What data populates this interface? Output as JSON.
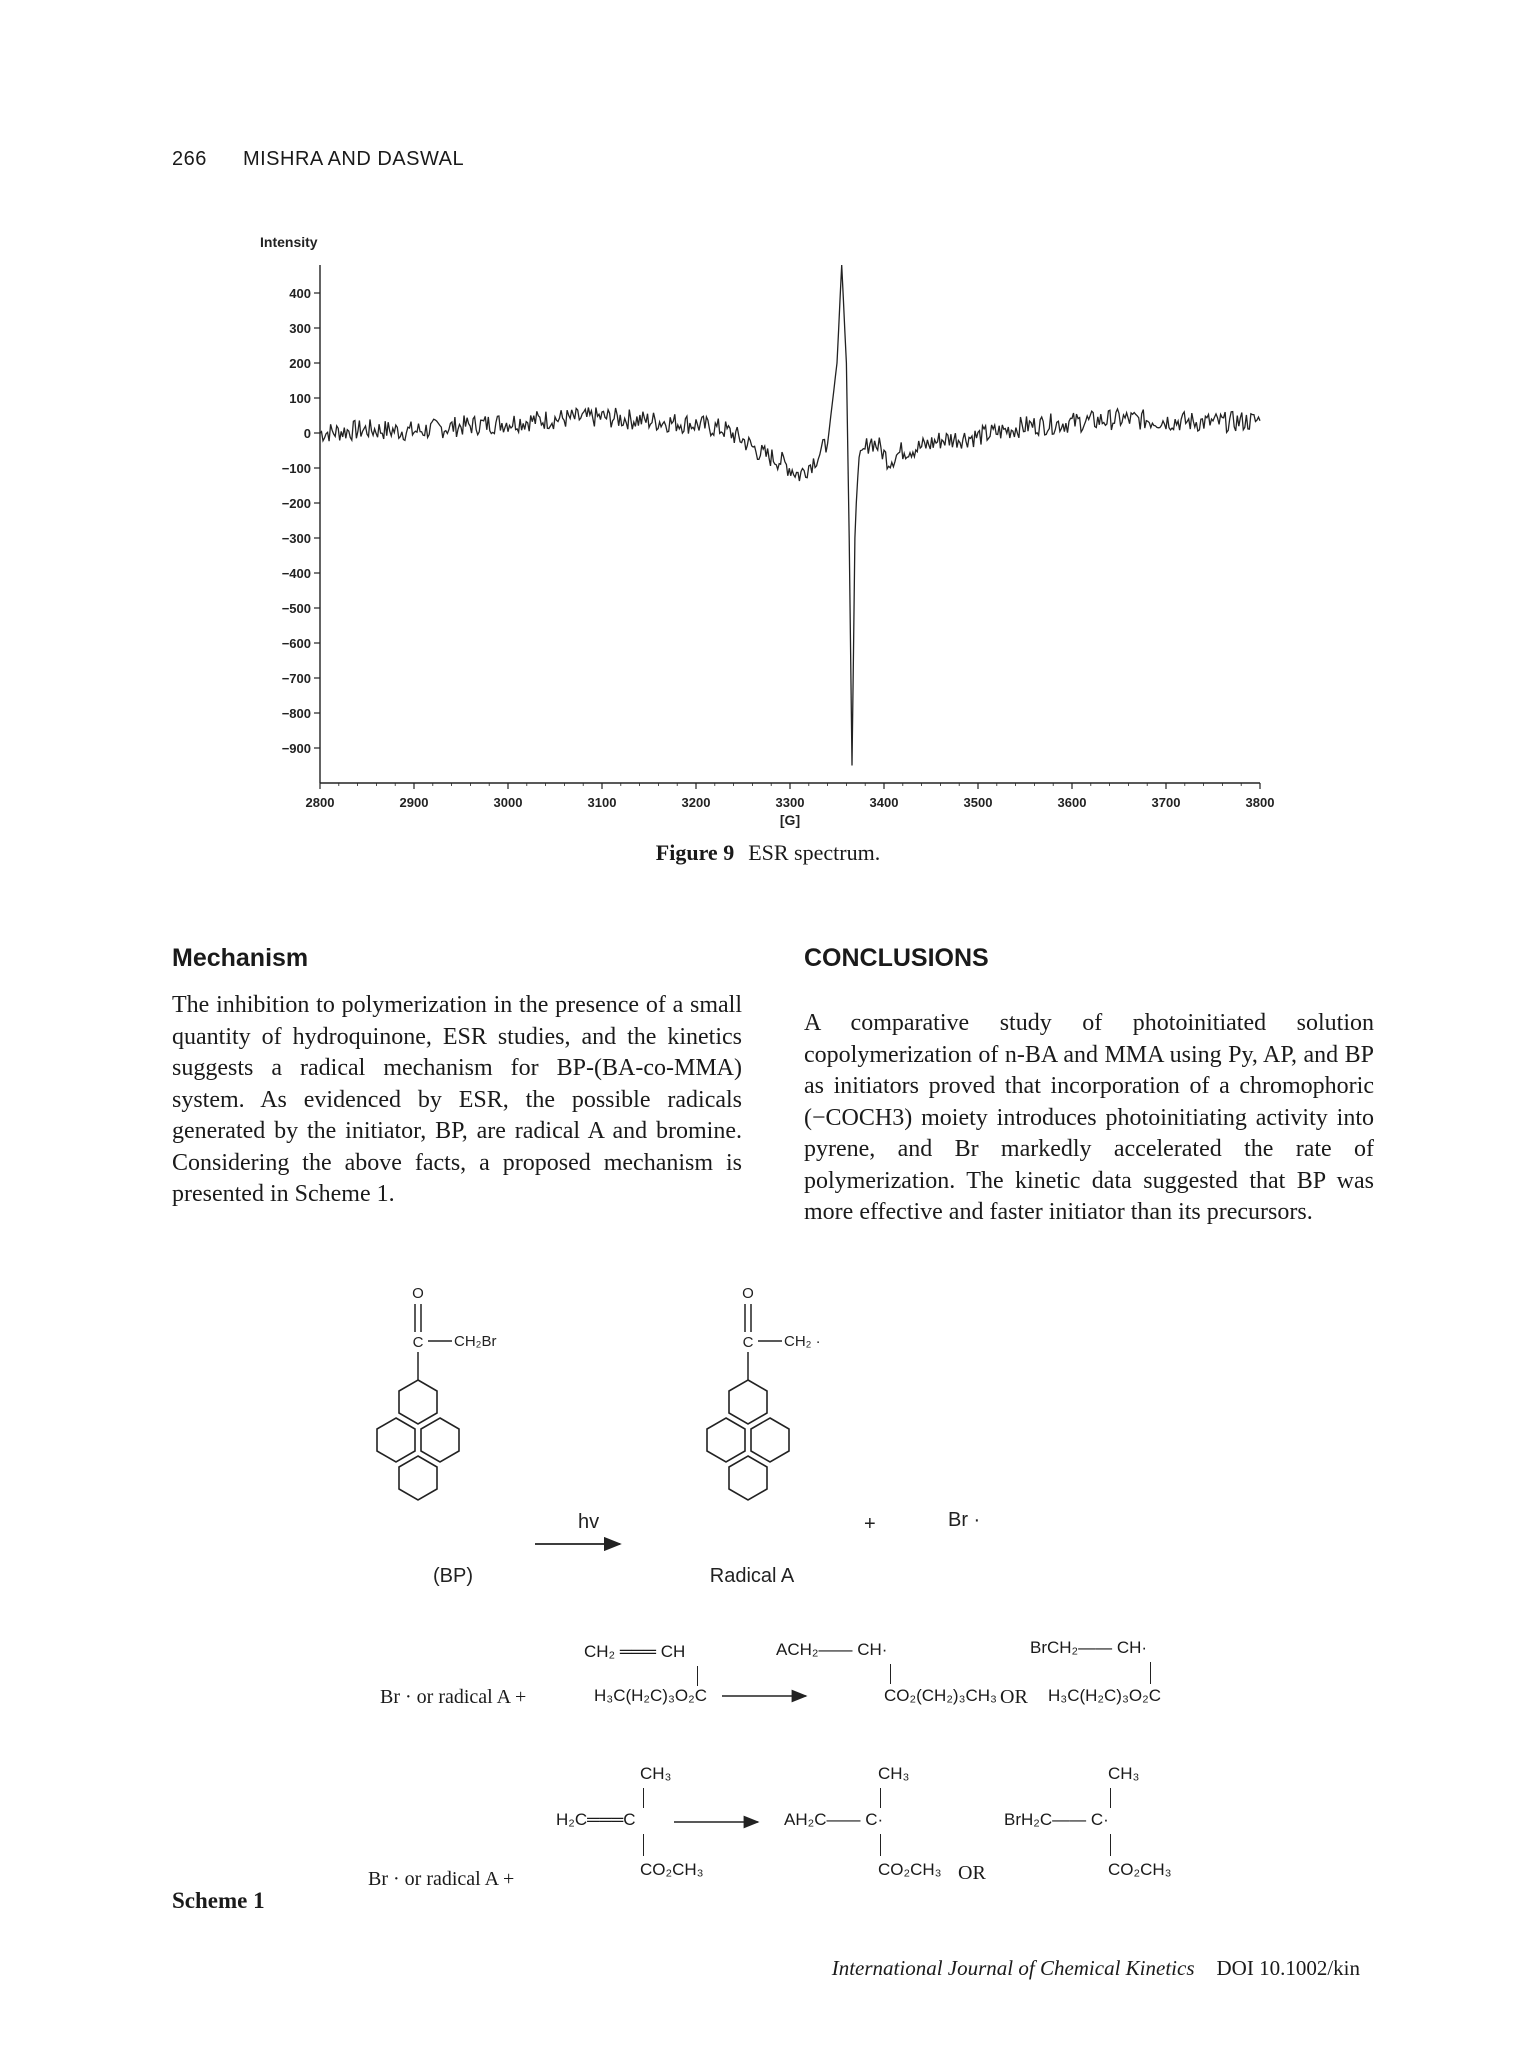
{
  "header": {
    "page_number": "266",
    "running_title": "MISHRA AND DASWAL"
  },
  "figure": {
    "caption_label": "Figure 9",
    "caption_text": "ESR spectrum."
  },
  "chart_data": {
    "type": "line",
    "title": "",
    "ylabel": "Intensity",
    "xlabel": "[G]",
    "xlim": [
      2800,
      3800
    ],
    "ylim": [
      -1000,
      480
    ],
    "x_ticks": [
      "2800",
      "2900",
      "3000",
      "3100",
      "3200",
      "3300",
      "3400",
      "3500",
      "3600",
      "3700",
      "3800"
    ],
    "y_ticks": [
      "400",
      "300",
      "200",
      "100",
      "0",
      "-100",
      "-200",
      "-300",
      "-400",
      "-500",
      "-600",
      "-700",
      "-800",
      "-900"
    ],
    "series": [
      {
        "x": [
          2800,
          2850,
          2900,
          2950,
          3000,
          3050,
          3100,
          3150,
          3200,
          3230,
          3250,
          3270,
          3290,
          3310,
          3325,
          3340,
          3350,
          3355,
          3360,
          3363,
          3366,
          3369,
          3372,
          3378,
          3385,
          3395,
          3405,
          3420,
          3440,
          3460,
          3500,
          3550,
          3600,
          3650,
          3700,
          3750,
          3800
        ],
        "y": [
          0,
          10,
          5,
          20,
          30,
          40,
          45,
          35,
          25,
          10,
          -20,
          -60,
          -80,
          -120,
          -80,
          -30,
          200,
          480,
          200,
          -300,
          -950,
          -300,
          -100,
          -60,
          -20,
          -40,
          -80,
          -50,
          -40,
          -20,
          -10,
          20,
          30,
          40,
          35,
          30,
          35
        ]
      }
    ]
  },
  "mechanism": {
    "heading": "Mechanism",
    "paragraph": "The inhibition to polymerization in the presence of a small quantity of hydroquinone, ESR studies, and the kinetics suggests a radical mechanism for BP-(BA-co-MMA) system. As evidenced by ESR, the possible radicals generated by the initiator, BP, are radical A and bromine. Considering the above facts, a proposed mechanism is presented in Scheme 1."
  },
  "conclusions": {
    "heading": "CONCLUSIONS",
    "paragraph": "A comparative study of photoinitiated solution copolymerization of n-BA and MMA using Py, AP, and BP as initiators proved that incorporation of a chromophoric (−COCH3) moiety introduces photoinitiating activity into pyrene, and Br markedly accelerated the rate of polymerization. The kinetic data suggested that BP was more effective and faster initiator than its precursors."
  },
  "scheme": {
    "label": "Scheme 1",
    "bp_label": "(BP)",
    "radical_a_label": "Radical A",
    "hv": "hv",
    "plus": "+",
    "br_radical": "Br ·",
    "o_atom": "O",
    "c_atom": "C",
    "bp_substituent": "CH₂Br",
    "radA_substituent": "CH₂ ·",
    "row1_reagent": "Br · or radical A +",
    "row1_monomer_top": "CH₂ ═══ CH",
    "row1_monomer_bottom": "H₃C(H₂C)₃O₂C",
    "row1_prod1_top": "ACH₂—— CH·",
    "row1_prod1_bottom": "CO₂(CH₂)₃CH₃",
    "row1_or": "OR",
    "row1_prod2_top": "BrCH₂—— CH·",
    "row1_prod2_bottom": "H₃C(H₂C)₃O₂C",
    "row2_reagent": "Br · or radical A +",
    "row2_monomer_ch3": "CH₃",
    "row2_monomer_mid": "H₂C═══C",
    "row2_monomer_co2": "CO₂CH₃",
    "row2_prod1_ch3": "CH₃",
    "row2_prod1_mid": "AH₂C—— C·",
    "row2_prod1_co2": "CO₂CH₃",
    "row2_or": "OR",
    "row2_prod2_ch3": "CH₃",
    "row2_prod2_mid": "BrH₂C—— C·",
    "row2_prod2_co2": "CO₂CH₃"
  },
  "footer": {
    "journal": "International Journal of Chemical Kinetics",
    "doi": "DOI 10.1002/kin"
  }
}
